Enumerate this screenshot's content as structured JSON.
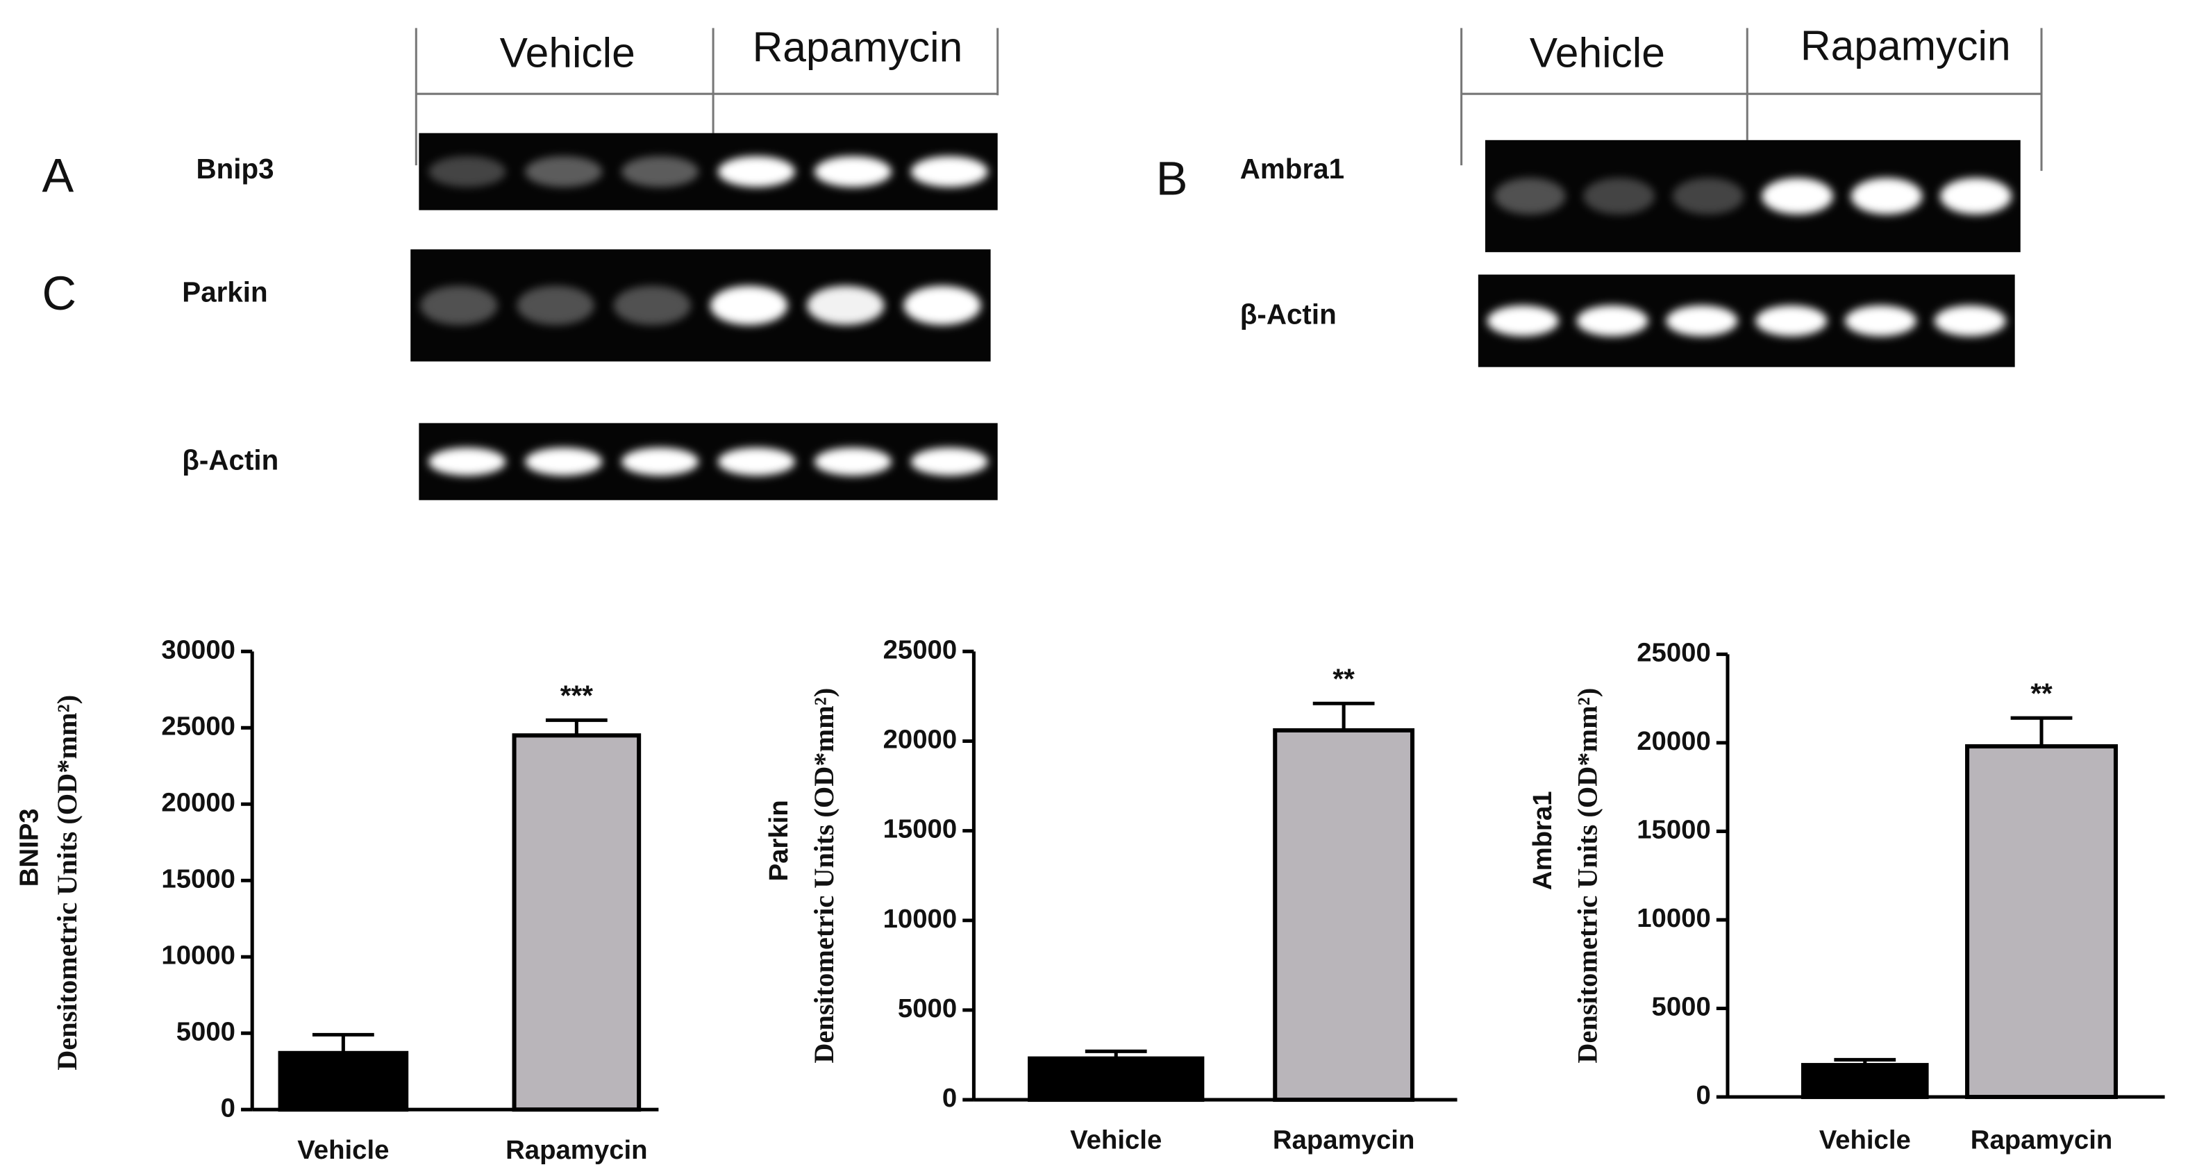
{
  "gels": [
    {
      "headers": [
        "Vehicle",
        "Rapamycin"
      ],
      "rows": [
        {
          "panel": "A",
          "label": "Bnip3"
        },
        {
          "panel": "C",
          "label": "Parkin"
        },
        {
          "label": "β-Actin"
        }
      ]
    },
    {
      "headers": [
        "Vehicle",
        "Rapamycin"
      ],
      "rows": [
        {
          "panel": "B",
          "label": "Ambra1"
        },
        {
          "label": "β-Actin"
        }
      ]
    }
  ],
  "chart_data": [
    {
      "type": "bar",
      "ylabel": [
        "BNIP3",
        "Densitometric Units (OD*mm²)"
      ],
      "categories": [
        "Vehicle",
        "Rapamycin"
      ],
      "values": [
        3700,
        24500
      ],
      "errors": [
        1200,
        1000
      ],
      "colors": [
        "#000000",
        "#b9b5ba"
      ],
      "annotation": "***",
      "ylim": [
        0,
        30000
      ],
      "yticks": [
        0,
        5000,
        10000,
        15000,
        20000,
        25000,
        30000
      ]
    },
    {
      "type": "bar",
      "ylabel": [
        "Parkin",
        "Densitometric Units (OD*mm²)"
      ],
      "categories": [
        "Vehicle",
        "Rapamycin"
      ],
      "values": [
        2300,
        20600
      ],
      "errors": [
        400,
        1500
      ],
      "colors": [
        "#000000",
        "#b9b5ba"
      ],
      "annotation": "**",
      "ylim": [
        0,
        25000
      ],
      "yticks": [
        0,
        5000,
        10000,
        15000,
        20000,
        25000
      ]
    },
    {
      "type": "bar",
      "ylabel": [
        "Ambra1",
        "Densitometric Units (OD*mm²)"
      ],
      "categories": [
        "Vehicle",
        "Rapamycin"
      ],
      "values": [
        1800,
        19800
      ],
      "errors": [
        300,
        1600
      ],
      "colors": [
        "#000000",
        "#b9b5ba"
      ],
      "annotation": "**",
      "ylim": [
        0,
        25000
      ],
      "yticks": [
        0,
        5000,
        10000,
        15000,
        20000,
        25000
      ]
    }
  ]
}
